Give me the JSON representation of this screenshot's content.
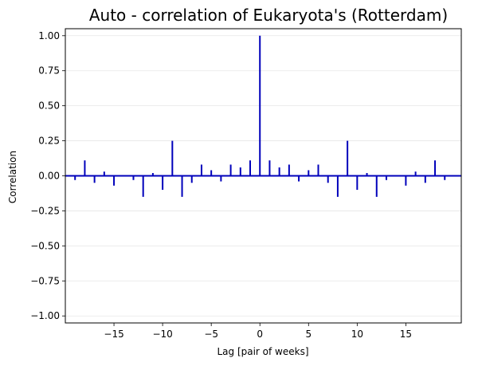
{
  "chart_data": {
    "type": "bar",
    "title": "Auto - correlation of Eukaryota's (Rotterdam)",
    "xlabel": "Lag [pair of weeks]",
    "ylabel": "Correlation",
    "xlim": [
      -20,
      20.7
    ],
    "ylim": [
      -1.05,
      1.05
    ],
    "xticks": [
      -15,
      -10,
      -5,
      0,
      5,
      10,
      15
    ],
    "xtick_labels": [
      "−15",
      "−10",
      "−5",
      "0",
      "5",
      "10",
      "15"
    ],
    "yticks": [
      -1.0,
      -0.75,
      -0.5,
      -0.25,
      0.0,
      0.25,
      0.5,
      0.75,
      1.0
    ],
    "ytick_labels": [
      "−1.00",
      "−0.75",
      "−0.50",
      "−0.25",
      "0.00",
      "0.25",
      "0.50",
      "0.75",
      "1.00"
    ],
    "grid": "horizontal",
    "line_color": "#0000bb",
    "series": [
      {
        "x": [
          -19,
          -18,
          -17,
          -16,
          -15,
          -14,
          -13,
          -12,
          -11,
          -10,
          -9,
          -8,
          -7,
          -6,
          -5,
          -4,
          -3,
          -2,
          -1,
          0,
          1,
          2,
          3,
          4,
          5,
          6,
          7,
          8,
          9,
          10,
          11,
          12,
          13,
          14,
          15,
          16,
          17,
          18,
          19
        ],
        "values": [
          -0.03,
          0.11,
          -0.05,
          0.03,
          -0.07,
          0.0,
          -0.03,
          -0.15,
          0.02,
          -0.1,
          0.25,
          -0.15,
          -0.05,
          0.08,
          0.04,
          -0.04,
          0.08,
          0.06,
          0.11,
          1.0,
          0.11,
          0.06,
          0.08,
          -0.04,
          0.04,
          0.08,
          -0.05,
          -0.15,
          0.25,
          -0.1,
          0.02,
          -0.15,
          -0.03,
          0.0,
          -0.07,
          0.03,
          -0.05,
          0.11,
          -0.03
        ]
      }
    ]
  }
}
